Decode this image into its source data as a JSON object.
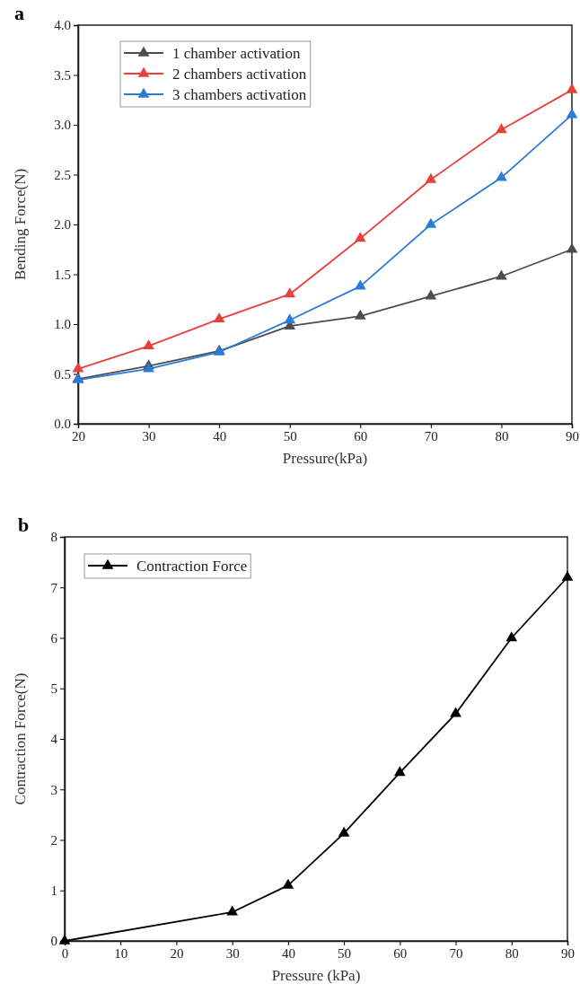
{
  "chart_data": [
    {
      "type": "line",
      "title": "a",
      "xlabel": "Pressure(kPa)",
      "ylabel": "Bending Force(N)",
      "x": [
        20,
        30,
        40,
        50,
        60,
        70,
        80,
        90
      ],
      "series": [
        {
          "name": "1 chamber activation",
          "color": "#4d4d4d",
          "values": [
            0.45,
            0.58,
            0.73,
            0.98,
            1.08,
            1.28,
            1.48,
            1.75
          ]
        },
        {
          "name": "2 chambers activation",
          "color": "#e8413c",
          "values": [
            0.55,
            0.78,
            1.05,
            1.3,
            1.86,
            2.45,
            2.95,
            3.35
          ]
        },
        {
          "name": "3 chambers activation",
          "color": "#2b7bd9",
          "values": [
            0.44,
            0.55,
            0.72,
            1.04,
            1.38,
            2.0,
            2.47,
            3.1
          ]
        }
      ],
      "xlim": [
        20,
        90
      ],
      "xticks": [
        20,
        30,
        40,
        50,
        60,
        70,
        80,
        90
      ],
      "ylim": [
        0,
        4
      ],
      "yticks": [
        {
          "value": 0,
          "label": "0.0"
        },
        {
          "value": 0.5,
          "label": "0.5"
        },
        {
          "value": 1,
          "label": "1.0"
        },
        {
          "value": 1.5,
          "label": "1.5"
        },
        {
          "value": 2,
          "label": "2.0"
        },
        {
          "value": 2.5,
          "label": "2.5"
        },
        {
          "value": 3,
          "label": "3.0"
        },
        {
          "value": 3.5,
          "label": "3.5"
        },
        {
          "value": 4,
          "label": "4.0"
        }
      ],
      "grid": false,
      "legend": "top left",
      "marker": "triangle",
      "line_style": "solid"
    },
    {
      "type": "line",
      "title": "b",
      "xlabel": "Pressure (kPa)",
      "ylabel": "Contraction Force(N)",
      "x": [
        0,
        30,
        40,
        50,
        60,
        70,
        80,
        90
      ],
      "series": [
        {
          "name": "Contraction Force",
          "color": "#000000",
          "values": [
            0,
            0.57,
            1.1,
            2.13,
            3.33,
            4.5,
            6.0,
            7.2
          ]
        }
      ],
      "xlim": [
        0,
        90
      ],
      "xticks": [
        0,
        10,
        20,
        30,
        40,
        50,
        60,
        70,
        80,
        90
      ],
      "ylim": [
        0,
        8
      ],
      "yticks": [
        0,
        1,
        2,
        3,
        4,
        5,
        6,
        7,
        8
      ],
      "grid": false,
      "legend": "top left",
      "marker": "triangle",
      "line_style": "solid"
    }
  ]
}
